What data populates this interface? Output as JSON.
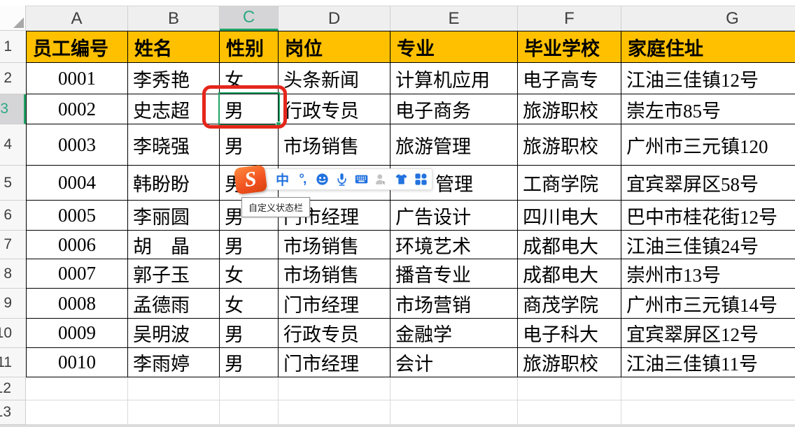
{
  "sheet": {
    "column_headers": [
      "A",
      "B",
      "C",
      "D",
      "E",
      "F",
      "G"
    ],
    "row_headers": [
      "1",
      "2",
      "3",
      "4",
      "5",
      "6",
      "7",
      "8",
      "9",
      "10",
      "11",
      "12",
      "13"
    ],
    "selected_column": "C",
    "selected_row": "3",
    "table": {
      "header_row": [
        "员工编号",
        "姓名",
        "性别",
        "岗位",
        "专业",
        "毕业学校",
        "家庭住址"
      ],
      "rows": [
        [
          "0001",
          "李秀艳",
          "女",
          "头条新闻",
          "计算机应用",
          "电子高专",
          "江油三佳镇12号"
        ],
        [
          "0002",
          "史志超",
          "男",
          "行政专员",
          "电子商务",
          "旅游职校",
          "崇左市85号"
        ],
        [
          "0003",
          "李晓强",
          "男",
          "市场销售",
          "旅游管理",
          "旅游职校",
          "广州市三元镇120"
        ],
        [
          "0004",
          "韩盼盼",
          "男",
          "",
          "管理",
          "工商学院",
          "宜宾翠屏区58号"
        ],
        [
          "0005",
          "李丽圆",
          "男",
          "门市经理",
          "广告设计",
          "四川电大",
          "巴中市桂花街12号"
        ],
        [
          "0006",
          "胡　晶",
          "男",
          "市场销售",
          "环境艺术",
          "成都电大",
          "江油三佳镇24号"
        ],
        [
          "0007",
          "郭子玉",
          "女",
          "市场销售",
          "播音专业",
          "成都电大",
          "崇州市13号"
        ],
        [
          "0008",
          "孟德雨",
          "女",
          "门市经理",
          "市场营销",
          "商茂学院",
          "广州市三元镇14号"
        ],
        [
          "0009",
          "吴明波",
          "男",
          "行政专员",
          "金融学",
          "电子科大",
          "宜宾翠屏区12号"
        ],
        [
          "0010",
          "李雨婷",
          "男",
          "门市经理",
          "会计",
          "旅游职校",
          "江油三佳镇11号"
        ]
      ]
    },
    "selection": {
      "cell": "C3",
      "value": "男"
    }
  },
  "annotation": {
    "shape": "red-rounded-rectangle",
    "around_cell": "C3"
  },
  "ime_toolbar": {
    "product": "Sogou",
    "logo_letter": "S",
    "icons": [
      {
        "name": "chinese-mode-icon",
        "label": "中"
      },
      {
        "name": "punctuation-icon",
        "label": "°,"
      },
      {
        "name": "emoji-icon",
        "label": ""
      },
      {
        "name": "voice-input-icon",
        "label": ""
      },
      {
        "name": "soft-keyboard-icon",
        "label": ""
      },
      {
        "name": "account-icon",
        "label": ""
      },
      {
        "name": "skin-icon",
        "label": ""
      },
      {
        "name": "toolbox-icon",
        "label": ""
      }
    ]
  },
  "tooltip": {
    "text": "自定义状态栏"
  },
  "colors": {
    "header_fill": "#FFC000",
    "selection_green": "#21A366",
    "annotation_red": "#E5261B",
    "ime_blue": "#2272DF",
    "ime_orange": "#F1511F"
  }
}
